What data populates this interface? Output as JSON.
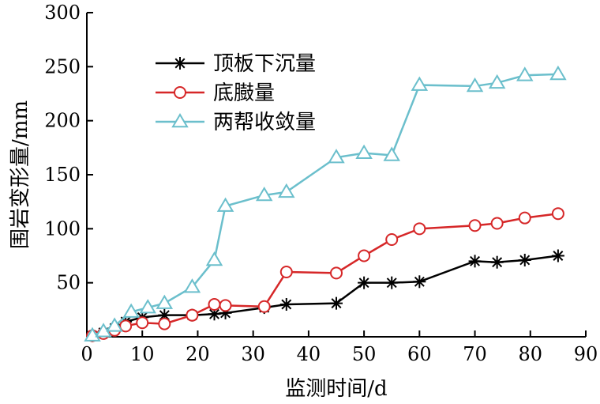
{
  "chart_data": {
    "type": "line",
    "xlabel": "监测时间/d",
    "ylabel": "围岩变形量/mm",
    "xlim": [
      0,
      90
    ],
    "ylim": [
      0,
      300
    ],
    "xticks": [
      0,
      10,
      20,
      30,
      40,
      50,
      60,
      70,
      80,
      90
    ],
    "yticks": [
      50,
      100,
      150,
      200,
      250,
      300
    ],
    "grid": false,
    "legend_position": "top-left",
    "series": [
      {
        "name": "顶板下沉量",
        "color": "#000000",
        "marker": "asterisk",
        "x": [
          1,
          3,
          5,
          7,
          10,
          14,
          19,
          23,
          25,
          32,
          36,
          45,
          50,
          55,
          60,
          70,
          74,
          79,
          85
        ],
        "y": [
          1,
          4,
          8,
          14,
          18,
          20,
          20,
          21,
          22,
          27,
          30,
          31,
          50,
          50,
          51,
          70,
          69,
          71,
          75
        ]
      },
      {
        "name": "底臌量",
        "color": "#d62728",
        "marker": "circle",
        "x": [
          1,
          3,
          5,
          7,
          10,
          14,
          19,
          23,
          25,
          32,
          36,
          45,
          50,
          55,
          60,
          70,
          74,
          79,
          85
        ],
        "y": [
          1,
          3,
          6,
          10,
          13,
          12,
          20,
          30,
          29,
          28,
          60,
          59,
          75,
          90,
          100,
          103,
          105,
          110,
          114
        ]
      },
      {
        "name": "两帮收敛量",
        "color": "#6bbfcc",
        "marker": "triangle",
        "x": [
          1,
          3,
          5,
          8,
          11,
          14,
          19,
          23,
          25,
          32,
          36,
          45,
          50,
          55,
          60,
          70,
          74,
          79,
          85
        ],
        "y": [
          1,
          5,
          10,
          23,
          27,
          31,
          46,
          71,
          121,
          131,
          134,
          166,
          170,
          168,
          233,
          232,
          235,
          242,
          243
        ]
      }
    ]
  }
}
